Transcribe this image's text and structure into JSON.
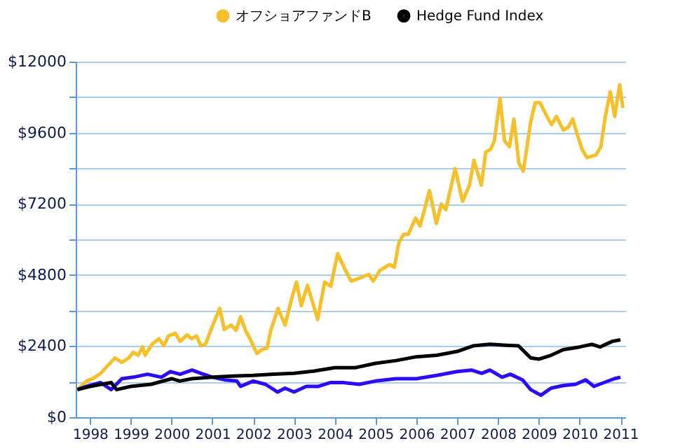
{
  "chart_data": {
    "type": "line",
    "xlim": [
      1997.65,
      2011.12
    ],
    "xticks": [
      1998,
      1999,
      2000,
      2001,
      2002,
      2003,
      2004,
      2005,
      2006,
      2007,
      2008,
      2009,
      2010,
      2011
    ],
    "ylim": [
      0,
      12000
    ],
    "yticks": [
      {
        "value": 0,
        "label": "$0"
      },
      {
        "value": 1200,
        "label": null
      },
      {
        "value": 2400,
        "label": "$2400"
      },
      {
        "value": 3600,
        "label": null
      },
      {
        "value": 4800,
        "label": "$4800"
      },
      {
        "value": 6000,
        "label": null
      },
      {
        "value": 7200,
        "label": "$7200"
      },
      {
        "value": 8400,
        "label": null
      },
      {
        "value": 9600,
        "label": "$9600"
      },
      {
        "value": 10800,
        "label": null
      },
      {
        "value": 12000,
        "label": "$12000"
      }
    ],
    "grid": "y",
    "legend": "top right",
    "marker": "none",
    "line_style": "solid",
    "series": [
      {
        "name": "オフショアファンドB",
        "color": "#f5c02a",
        "x": [
          1997.69,
          1997.92,
          1998.09,
          1998.26,
          1998.61,
          1998.78,
          1998.95,
          1999.06,
          1999.18,
          1999.29,
          1999.35,
          1999.52,
          1999.69,
          1999.81,
          1999.92,
          2000.09,
          2000.21,
          2000.38,
          2000.49,
          2000.61,
          2000.72,
          2000.83,
          2001.01,
          2001.18,
          2001.29,
          2001.46,
          2001.58,
          2001.69,
          2001.81,
          2001.92,
          2002.09,
          2002.21,
          2002.34,
          2002.43,
          2002.61,
          2002.78,
          2002.95,
          2003.06,
          2003.18,
          2003.33,
          2003.46,
          2003.58,
          2003.75,
          2003.9,
          2004.07,
          2004.26,
          2004.4,
          2004.6,
          2004.83,
          2004.94,
          2005.11,
          2005.34,
          2005.46,
          2005.57,
          2005.69,
          2005.8,
          2005.98,
          2006.09,
          2006.32,
          2006.49,
          2006.61,
          2006.72,
          2006.95,
          2007.13,
          2007.3,
          2007.41,
          2007.59,
          2007.7,
          2007.82,
          2007.91,
          2008.05,
          2008.16,
          2008.28,
          2008.39,
          2008.51,
          2008.62,
          2008.8,
          2008.91,
          2009.03,
          2009.2,
          2009.31,
          2009.43,
          2009.6,
          2009.72,
          2009.83,
          2009.95,
          2010.06,
          2010.18,
          2010.4,
          2010.52,
          2010.63,
          2010.75,
          2010.86,
          2010.98,
          2011.06
        ],
        "values": [
          930,
          1220,
          1320,
          1480,
          2000,
          1850,
          2000,
          2190,
          2090,
          2370,
          2090,
          2460,
          2650,
          2410,
          2740,
          2830,
          2560,
          2780,
          2650,
          2740,
          2410,
          2460,
          3110,
          3670,
          2960,
          3110,
          2930,
          3390,
          2930,
          2650,
          2150,
          2280,
          2330,
          2930,
          3670,
          3110,
          4040,
          4560,
          3760,
          4450,
          3850,
          3300,
          4560,
          4410,
          5520,
          4960,
          4590,
          4690,
          4820,
          4590,
          4960,
          5150,
          5060,
          5890,
          6170,
          6170,
          6720,
          6450,
          7650,
          6540,
          7190,
          7000,
          8390,
          7280,
          7830,
          8670,
          7830,
          8950,
          9040,
          9320,
          10760,
          9320,
          9130,
          10060,
          8580,
          8300,
          9960,
          10610,
          10610,
          10150,
          9870,
          10150,
          9690,
          9780,
          10060,
          9500,
          9040,
          8760,
          8850,
          9130,
          10150,
          10980,
          10150,
          11220,
          10430
        ]
      },
      {
        "color": "#2b0cf5",
        "x": [
          1997.69,
          1997.92,
          1998.26,
          1998.52,
          1998.78,
          1999.06,
          1999.41,
          1999.75,
          1999.97,
          2000.21,
          2000.5,
          2000.72,
          2001.0,
          2001.3,
          2001.6,
          2001.69,
          2002.0,
          2002.3,
          2002.6,
          2002.78,
          2003.0,
          2003.3,
          2003.6,
          2003.9,
          2004.2,
          2004.6,
          2005.0,
          2005.5,
          2006.0,
          2006.5,
          2007.0,
          2007.35,
          2007.6,
          2007.8,
          2008.1,
          2008.3,
          2008.6,
          2008.8,
          2009.05,
          2009.3,
          2009.6,
          2009.9,
          2010.15,
          2010.35,
          2010.6,
          2010.85,
          2011.0
        ],
        "values": [
          930,
          1040,
          1170,
          930,
          1300,
          1350,
          1450,
          1350,
          1540,
          1450,
          1590,
          1480,
          1350,
          1260,
          1220,
          1040,
          1220,
          1110,
          850,
          980,
          850,
          1040,
          1040,
          1170,
          1170,
          1110,
          1220,
          1300,
          1300,
          1410,
          1540,
          1590,
          1480,
          1590,
          1350,
          1450,
          1260,
          930,
          740,
          980,
          1070,
          1110,
          1260,
          1040,
          1170,
          1300,
          1350
        ]
      },
      {
        "name": "Hedge Fund Index",
        "color": "#000000",
        "x": [
          1997.69,
          1998.0,
          1998.52,
          1998.65,
          1999.0,
          1999.5,
          2000.0,
          2000.2,
          2000.5,
          2001.0,
          2001.5,
          2002.0,
          2002.5,
          2003.0,
          2003.5,
          2004.0,
          2004.5,
          2005.0,
          2005.5,
          2006.0,
          2006.5,
          2007.0,
          2007.4,
          2007.8,
          2008.2,
          2008.5,
          2008.8,
          2009.0,
          2009.3,
          2009.6,
          2010.0,
          2010.3,
          2010.5,
          2010.8,
          2011.0
        ],
        "values": [
          930,
          1040,
          1170,
          930,
          1040,
          1110,
          1300,
          1220,
          1300,
          1350,
          1390,
          1410,
          1450,
          1480,
          1560,
          1670,
          1670,
          1820,
          1910,
          2040,
          2090,
          2220,
          2410,
          2460,
          2430,
          2410,
          2000,
          1960,
          2090,
          2280,
          2370,
          2460,
          2370,
          2560,
          2610
        ]
      }
    ]
  }
}
